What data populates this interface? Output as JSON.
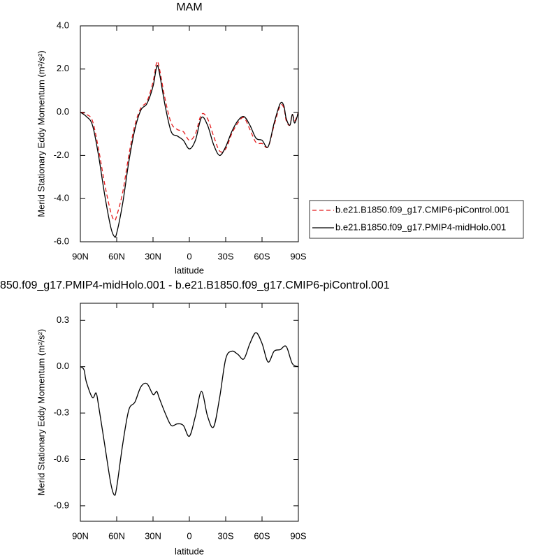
{
  "chart_data": [
    {
      "type": "line",
      "title": "MAM",
      "x_label": "latitude",
      "y_label": "Merid Stationary Eddy Momentum (m²/s²)",
      "x": [
        90,
        85,
        80,
        75,
        70,
        65,
        62,
        60,
        55,
        50,
        45,
        40,
        35,
        30,
        27,
        25,
        20,
        15,
        10,
        5,
        0,
        -5,
        -10,
        -15,
        -20,
        -25,
        -30,
        -35,
        -40,
        -45,
        -50,
        -55,
        -60,
        -65,
        -70,
        -75,
        -78,
        -80,
        -83,
        -85,
        -87,
        -90
      ],
      "series": [
        {
          "name": "b.e21.B1850.f09_g17.CMIP6-piControl.001",
          "color": "#e41a1c",
          "dash": true,
          "values": [
            0,
            -0.1,
            -0.4,
            -1.7,
            -3.3,
            -4.6,
            -5.0,
            -4.8,
            -3.7,
            -2.0,
            -0.6,
            0.2,
            0.5,
            1.4,
            2.3,
            2.1,
            0.6,
            -0.5,
            -0.8,
            -0.9,
            -1.3,
            -1.0,
            -0.1,
            -0.3,
            -1.1,
            -1.8,
            -1.7,
            -1.0,
            -0.5,
            -0.25,
            -0.8,
            -1.4,
            -1.45,
            -1.6,
            -0.6,
            0.3,
            0.2,
            -0.4,
            -0.6,
            -0.1,
            -0.4,
            0
          ]
        },
        {
          "name": "b.e21.B1850.f09_g17.PMIP4-midHolo.001",
          "color": "#000000",
          "dash": false,
          "values": [
            0,
            -0.2,
            -0.6,
            -2.0,
            -3.8,
            -5.3,
            -5.75,
            -5.6,
            -4.2,
            -2.3,
            -0.8,
            0.1,
            0.4,
            1.2,
            2.1,
            1.9,
            0.3,
            -0.9,
            -1.1,
            -1.3,
            -1.7,
            -1.3,
            -0.25,
            -0.6,
            -1.5,
            -2.0,
            -1.6,
            -0.9,
            -0.4,
            -0.2,
            -0.6,
            -1.2,
            -1.3,
            -1.6,
            -0.5,
            0.4,
            0.3,
            -0.3,
            -0.6,
            -0.1,
            -0.5,
            0
          ]
        }
      ],
      "xlim": [
        90,
        -90
      ],
      "xticks": [
        {
          "value": 90,
          "label": "90N"
        },
        {
          "value": 60,
          "label": "60N"
        },
        {
          "value": 30,
          "label": "30N"
        },
        0,
        {
          "value": -30,
          "label": "30S"
        },
        {
          "value": -60,
          "label": "60S"
        },
        {
          "value": -90,
          "label": "90S"
        }
      ],
      "ylim": [
        -6,
        4
      ],
      "yticks": [
        {
          "value": -6,
          "label": "-6.0"
        },
        {
          "value": -4,
          "label": "-4.0"
        },
        {
          "value": -2,
          "label": "-2.0"
        },
        {
          "value": 0,
          "label": "0.0"
        },
        {
          "value": 2,
          "label": "2.0"
        },
        {
          "value": 4,
          "label": "4.0"
        }
      ],
      "legend": "right"
    },
    {
      "type": "line",
      "title": "850.f09_g17.PMIP4-midHolo.001 - b.e21.B1850.f09_g17.CMIP6-piControl.001",
      "x_label": "latitude",
      "y_label": "Merid Stationary Eddy Momentum (m²/s²)",
      "x": [
        90,
        87,
        85,
        80,
        77,
        75,
        70,
        65,
        62,
        60,
        55,
        50,
        45,
        40,
        35,
        30,
        27,
        25,
        20,
        15,
        10,
        5,
        0,
        -5,
        -10,
        -15,
        -20,
        -25,
        -30,
        -35,
        -40,
        -45,
        -50,
        -55,
        -60,
        -65,
        -70,
        -75,
        -80,
        -85,
        -90
      ],
      "series": [
        {
          "color": "#000000",
          "dash": false,
          "values": [
            0,
            -0.02,
            -0.1,
            -0.2,
            -0.17,
            -0.25,
            -0.5,
            -0.75,
            -0.83,
            -0.78,
            -0.5,
            -0.28,
            -0.23,
            -0.13,
            -0.11,
            -0.18,
            -0.16,
            -0.2,
            -0.3,
            -0.38,
            -0.37,
            -0.38,
            -0.45,
            -0.32,
            -0.16,
            -0.32,
            -0.39,
            -0.2,
            0.05,
            0.1,
            0.08,
            0.05,
            0.15,
            0.22,
            0.15,
            0.03,
            0.1,
            0.11,
            0.13,
            0.02,
            0
          ]
        }
      ],
      "xlim": [
        90,
        -90
      ],
      "xticks": [
        {
          "value": 90,
          "label": "90N"
        },
        {
          "value": 60,
          "label": "60N"
        },
        {
          "value": 30,
          "label": "30N"
        },
        0,
        {
          "value": -30,
          "label": "30S"
        },
        {
          "value": -60,
          "label": "60S"
        },
        {
          "value": -90,
          "label": "90S"
        }
      ],
      "ylim": [
        -1.0,
        0.41
      ],
      "yticks": [
        -0.9,
        -0.6,
        -0.3,
        {
          "value": 0,
          "label": "0.0"
        },
        0.3
      ]
    }
  ]
}
